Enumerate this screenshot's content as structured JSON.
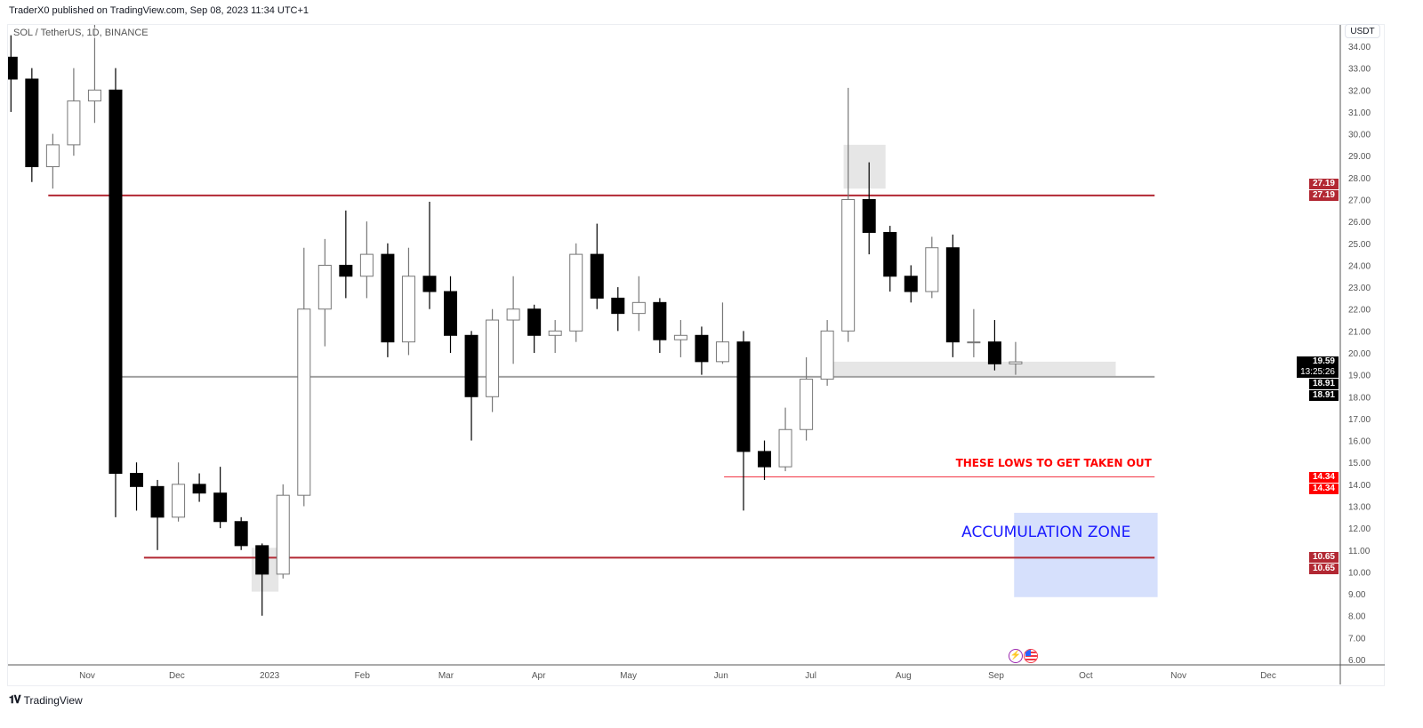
{
  "header": {
    "published": "TraderX0 published on TradingView.com, Sep 08, 2023 11:34 UTC+1"
  },
  "legend": {
    "symbol": "SOL / TetherUS, 1D, BINANCE"
  },
  "price_axis": {
    "currency": "USDT"
  },
  "footer": {
    "brand": "TradingView",
    "logo_icon": "tradingview-logo-icon"
  },
  "events": [
    {
      "icon": "lightning-icon",
      "color": "#9c27b0"
    },
    {
      "icon": "us-flag-icon",
      "color": "#f23645"
    }
  ],
  "colors": {
    "up_body": "#ffffff",
    "up_border": "#777777",
    "down": "#000000",
    "resistance": "#b22833",
    "lows": "#ff0000",
    "accumulation_fill": "#d6e0fc",
    "accumulation_text": "#1a1aff",
    "box_gray": "#e6e6e6"
  },
  "chart_data": {
    "type": "candlestick",
    "title": "SOL / TetherUS, 1D, BINANCE",
    "ylim": [
      6,
      34
    ],
    "y_ticks": [
      "34.00",
      "33.00",
      "32.00",
      "31.00",
      "30.00",
      "29.00",
      "28.00",
      "27.00",
      "26.00",
      "25.00",
      "24.00",
      "23.00",
      "22.00",
      "21.00",
      "20.00",
      "19.00",
      "18.00",
      "17.00",
      "16.00",
      "15.00",
      "14.00",
      "13.00",
      "12.00",
      "11.00",
      "10.00",
      "9.00",
      "8.00",
      "7.00",
      "6.00"
    ],
    "x_ticks": [
      {
        "label": "Nov",
        "date": "2022-11-01"
      },
      {
        "label": "Dec",
        "date": "2022-12-01"
      },
      {
        "label": "2023",
        "date": "2023-01-01"
      },
      {
        "label": "Feb",
        "date": "2023-02-01"
      },
      {
        "label": "Mar",
        "date": "2023-03-01"
      },
      {
        "label": "Apr",
        "date": "2023-04-01"
      },
      {
        "label": "May",
        "date": "2023-05-01"
      },
      {
        "label": "Jun",
        "date": "2023-06-01"
      },
      {
        "label": "Jul",
        "date": "2023-07-01"
      },
      {
        "label": "Aug",
        "date": "2023-08-01"
      },
      {
        "label": "Sep",
        "date": "2023-09-01"
      },
      {
        "label": "Oct",
        "date": "2023-10-01"
      },
      {
        "label": "Nov",
        "date": "2023-11-01"
      },
      {
        "label": "Dec",
        "date": "2023-12-01"
      }
    ],
    "candles": [
      {
        "date": "2022-10-03",
        "o": 33.5,
        "h": 34.5,
        "l": 31,
        "c": 32.5
      },
      {
        "date": "2022-10-10",
        "o": 32.5,
        "h": 33,
        "l": 27.8,
        "c": 28.5
      },
      {
        "date": "2022-10-17",
        "o": 28.5,
        "h": 30,
        "l": 27.5,
        "c": 29.5
      },
      {
        "date": "2022-10-24",
        "o": 29.5,
        "h": 33,
        "l": 29,
        "c": 31.5
      },
      {
        "date": "2022-10-31",
        "o": 31.5,
        "h": 38,
        "l": 30.5,
        "c": 32
      },
      {
        "date": "2022-11-07",
        "o": 32,
        "h": 33,
        "l": 12.5,
        "c": 14.5
      },
      {
        "date": "2022-11-14",
        "o": 14.5,
        "h": 15,
        "l": 12.8,
        "c": 13.9
      },
      {
        "date": "2022-11-21",
        "o": 13.9,
        "h": 14.2,
        "l": 11,
        "c": 12.5
      },
      {
        "date": "2022-11-28",
        "o": 12.5,
        "h": 15,
        "l": 12.3,
        "c": 14
      },
      {
        "date": "2022-12-05",
        "o": 14,
        "h": 14.5,
        "l": 13.2,
        "c": 13.6
      },
      {
        "date": "2022-12-12",
        "o": 13.6,
        "h": 14.8,
        "l": 12,
        "c": 12.3
      },
      {
        "date": "2022-12-19",
        "o": 12.3,
        "h": 12.5,
        "l": 11,
        "c": 11.2
      },
      {
        "date": "2022-12-26",
        "o": 11.2,
        "h": 11.3,
        "l": 8,
        "c": 9.9
      },
      {
        "date": "2023-01-02",
        "o": 9.9,
        "h": 14,
        "l": 9.7,
        "c": 13.5
      },
      {
        "date": "2023-01-09",
        "o": 13.5,
        "h": 24.8,
        "l": 13,
        "c": 22
      },
      {
        "date": "2023-01-16",
        "o": 22,
        "h": 25.2,
        "l": 20.3,
        "c": 24
      },
      {
        "date": "2023-01-23",
        "o": 24,
        "h": 26.5,
        "l": 22.5,
        "c": 23.5
      },
      {
        "date": "2023-01-30",
        "o": 23.5,
        "h": 26,
        "l": 22.5,
        "c": 24.5
      },
      {
        "date": "2023-02-06",
        "o": 24.5,
        "h": 25,
        "l": 19.8,
        "c": 20.5
      },
      {
        "date": "2023-02-13",
        "o": 20.5,
        "h": 24.8,
        "l": 19.9,
        "c": 23.5
      },
      {
        "date": "2023-02-20",
        "o": 23.5,
        "h": 26.9,
        "l": 22,
        "c": 22.8
      },
      {
        "date": "2023-02-27",
        "o": 22.8,
        "h": 23.5,
        "l": 20,
        "c": 20.8
      },
      {
        "date": "2023-03-06",
        "o": 20.8,
        "h": 21,
        "l": 16,
        "c": 18
      },
      {
        "date": "2023-03-13",
        "o": 18,
        "h": 22,
        "l": 17.3,
        "c": 21.5
      },
      {
        "date": "2023-03-20",
        "o": 21.5,
        "h": 23.5,
        "l": 19.5,
        "c": 22
      },
      {
        "date": "2023-03-27",
        "o": 22,
        "h": 22.2,
        "l": 20,
        "c": 20.8
      },
      {
        "date": "2023-04-03",
        "o": 20.8,
        "h": 21.5,
        "l": 20,
        "c": 21
      },
      {
        "date": "2023-04-10",
        "o": 21,
        "h": 25,
        "l": 20.5,
        "c": 24.5
      },
      {
        "date": "2023-04-17",
        "o": 24.5,
        "h": 25.9,
        "l": 22,
        "c": 22.5
      },
      {
        "date": "2023-04-24",
        "o": 22.5,
        "h": 23,
        "l": 21,
        "c": 21.8
      },
      {
        "date": "2023-05-01",
        "o": 21.8,
        "h": 23.5,
        "l": 21,
        "c": 22.3
      },
      {
        "date": "2023-05-08",
        "o": 22.3,
        "h": 22.5,
        "l": 20,
        "c": 20.6
      },
      {
        "date": "2023-05-15",
        "o": 20.6,
        "h": 21.5,
        "l": 19.8,
        "c": 20.8
      },
      {
        "date": "2023-05-22",
        "o": 20.8,
        "h": 21.2,
        "l": 19,
        "c": 19.6
      },
      {
        "date": "2023-05-29",
        "o": 19.6,
        "h": 22.3,
        "l": 19.5,
        "c": 20.5
      },
      {
        "date": "2023-06-05",
        "o": 20.5,
        "h": 21,
        "l": 12.8,
        "c": 15.5
      },
      {
        "date": "2023-06-12",
        "o": 15.5,
        "h": 16,
        "l": 14.2,
        "c": 14.8
      },
      {
        "date": "2023-06-19",
        "o": 14.8,
        "h": 17.5,
        "l": 14.6,
        "c": 16.5
      },
      {
        "date": "2023-06-26",
        "o": 16.5,
        "h": 19.8,
        "l": 16,
        "c": 18.8
      },
      {
        "date": "2023-07-03",
        "o": 18.8,
        "h": 21.5,
        "l": 18.5,
        "c": 21
      },
      {
        "date": "2023-07-10",
        "o": 21,
        "h": 32.1,
        "l": 20.5,
        "c": 27
      },
      {
        "date": "2023-07-17",
        "o": 27,
        "h": 28.7,
        "l": 24.5,
        "c": 25.5
      },
      {
        "date": "2023-07-24",
        "o": 25.5,
        "h": 25.8,
        "l": 22.8,
        "c": 23.5
      },
      {
        "date": "2023-07-31",
        "o": 23.5,
        "h": 24,
        "l": 22.3,
        "c": 22.8
      },
      {
        "date": "2023-08-07",
        "o": 22.8,
        "h": 25.3,
        "l": 22.5,
        "c": 24.8
      },
      {
        "date": "2023-08-14",
        "o": 24.8,
        "h": 25.4,
        "l": 19.8,
        "c": 20.5
      },
      {
        "date": "2023-08-21",
        "o": 20.5,
        "h": 22,
        "l": 19.8,
        "c": 20.5
      },
      {
        "date": "2023-08-28",
        "o": 20.5,
        "h": 21.5,
        "l": 19.2,
        "c": 19.5
      },
      {
        "date": "2023-09-04",
        "o": 19.5,
        "h": 20.5,
        "l": 19,
        "c": 19.59
      }
    ],
    "levels": [
      {
        "price": 27.19,
        "from": "2022-10-19",
        "to": "2023-10-24",
        "color": "#b22833",
        "width": 2
      },
      {
        "price": 18.91,
        "from": "2022-11-09",
        "to": "2023-10-24",
        "color": "#a0a0a0",
        "width": 2
      },
      {
        "price": 14.34,
        "from": "2023-06-02",
        "to": "2023-10-24",
        "color": "#f23645",
        "width": 1
      },
      {
        "price": 10.65,
        "from": "2022-11-20",
        "to": "2023-10-24",
        "color": "#b22833",
        "width": 2
      }
    ],
    "boxes": [
      {
        "from": "2022-12-26",
        "to": "2023-01-04",
        "top": 11.1,
        "bottom": 9.1,
        "color": "#e6e6e6"
      },
      {
        "from": "2023-07-12",
        "to": "2023-07-26",
        "top": 29.5,
        "bottom": 27.5,
        "color": "#e6e6e6"
      },
      {
        "from": "2023-07-08",
        "to": "2023-10-11",
        "top": 19.6,
        "bottom": 18.95,
        "color": "#e6e6e6"
      },
      {
        "from": "2023-09-07",
        "to": "2023-10-25",
        "top": 12.7,
        "bottom": 8.85,
        "color": "#d6e0fc"
      }
    ],
    "annotations": [
      {
        "text": "THESE LOWS TO GET TAKEN OUT",
        "price": 14.8,
        "date": "2023-10-23",
        "color": "#ff0000"
      },
      {
        "text": "ACCUMULATION ZONE",
        "price": 11.6,
        "date": "2023-10-16",
        "color": "#1a1aff"
      }
    ],
    "price_labels": [
      {
        "text": "27.19",
        "color": "#b22833"
      },
      {
        "text": "27.19",
        "color": "#b22833"
      },
      {
        "text": "19.59",
        "sub": "13:25:26",
        "color": "#000000"
      },
      {
        "text": "18.91",
        "color": "#000000"
      },
      {
        "text": "18.91",
        "color": "#000000"
      },
      {
        "text": "14.34",
        "color": "#ff0000"
      },
      {
        "text": "14.34",
        "color": "#ff0000"
      },
      {
        "text": "10.65",
        "color": "#b22833"
      },
      {
        "text": "10.65",
        "color": "#b22833"
      }
    ]
  }
}
